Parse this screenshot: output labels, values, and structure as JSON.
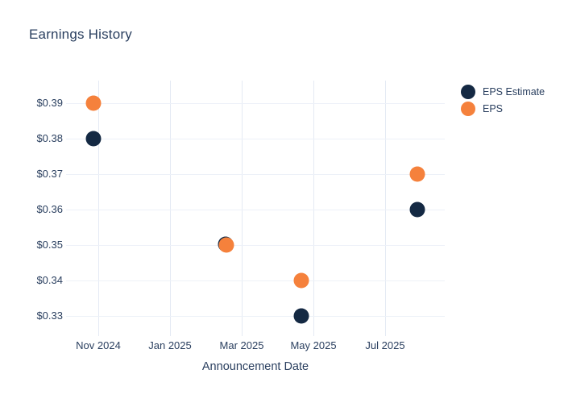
{
  "title": "Earnings History",
  "colors": {
    "eps_estimate": "#142943",
    "eps": "#F5813C",
    "text": "#2a3f5f",
    "grid_vertical": "#e4eaf4",
    "grid_horizontal": "#edf1f8",
    "background": "#ffffff"
  },
  "chart_data": {
    "type": "scatter",
    "title": "Earnings History",
    "xlabel": "Announcement Date",
    "ylabel": "",
    "grid": true,
    "legend_position": "top-right",
    "x_tick_labels": [
      "Nov 2024",
      "Jan 2025",
      "Mar 2025",
      "May 2025",
      "Jul 2025"
    ],
    "y_tick_labels": [
      "$0.39",
      "$0.38",
      "$0.37",
      "$0.36",
      "$0.35",
      "$0.34",
      "$0.33"
    ],
    "ylim": [
      0.325,
      0.395
    ],
    "series": [
      {
        "name": "EPS Estimate",
        "color": "#142943",
        "points": [
          {
            "x": "2024-10-27",
            "y": 0.38
          },
          {
            "x": "2025-02-18",
            "y": 0.35
          },
          {
            "x": "2025-04-21",
            "y": 0.33
          },
          {
            "x": "2025-07-28",
            "y": 0.36
          }
        ]
      },
      {
        "name": "EPS",
        "color": "#F5813C",
        "points": [
          {
            "x": "2024-10-27",
            "y": 0.39
          },
          {
            "x": "2025-02-18",
            "y": 0.35
          },
          {
            "x": "2025-04-21",
            "y": 0.34
          },
          {
            "x": "2025-07-28",
            "y": 0.37
          }
        ]
      }
    ]
  }
}
